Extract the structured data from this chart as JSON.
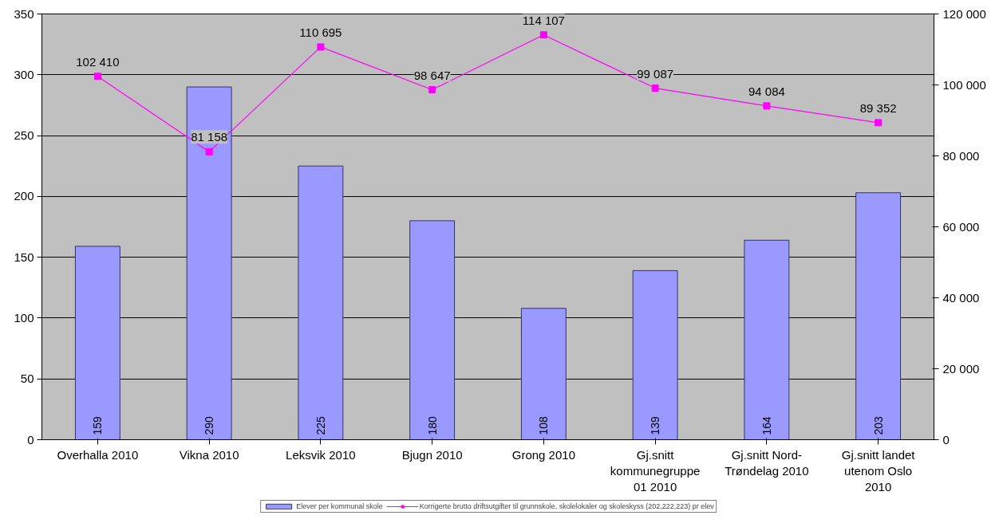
{
  "chart_data": {
    "type": "bar",
    "categories": [
      "Overhalla 2010",
      "Vikna 2010",
      "Leksvik 2010",
      "Bjugn 2010",
      "Grong 2010",
      "Gj.snitt\nkommunegruppe\n01 2010",
      "Gj.snitt Nord-\nTrøndelag 2010",
      "Gj.snitt landet\nutenom Oslo\n2010"
    ],
    "series": [
      {
        "name": "Elever per kommunal skole",
        "color": "#9999ff",
        "values": [
          159,
          290,
          225,
          180,
          108,
          139,
          164,
          203
        ],
        "value_labels": [
          "159",
          "290",
          "225",
          "180",
          "108",
          "139",
          "164",
          "203"
        ]
      },
      {
        "name": "Korrigerte brutto driftsutgifter til grunnskole, skolelokaler og skoleskyss (202,222,223) pr elev",
        "type": "line",
        "axis": "y2",
        "color": "#ff00ff",
        "marker": "square",
        "values": [
          102410,
          81158,
          110695,
          98647,
          114107,
          99087,
          94084,
          89352
        ],
        "value_labels": [
          "102 410",
          "81 158",
          "110 695",
          "98 647",
          "114 107",
          "99 087",
          "94 084",
          "89 352"
        ]
      }
    ],
    "ylim": [
      0,
      350
    ],
    "yticks": [
      0,
      50,
      100,
      150,
      200,
      250,
      300,
      350
    ],
    "y2lim": [
      0,
      120000
    ],
    "y2ticks": [
      {
        "value": 0,
        "label": "0"
      },
      {
        "value": 20000,
        "label": "20 000"
      },
      {
        "value": 40000,
        "label": "40 000"
      },
      {
        "value": 60000,
        "label": "60 000"
      },
      {
        "value": 80000,
        "label": "80 000"
      },
      {
        "value": 100000,
        "label": "100 000"
      },
      {
        "value": 120000,
        "label": "120 000"
      }
    ],
    "grid": "y",
    "legend": "bottom"
  }
}
